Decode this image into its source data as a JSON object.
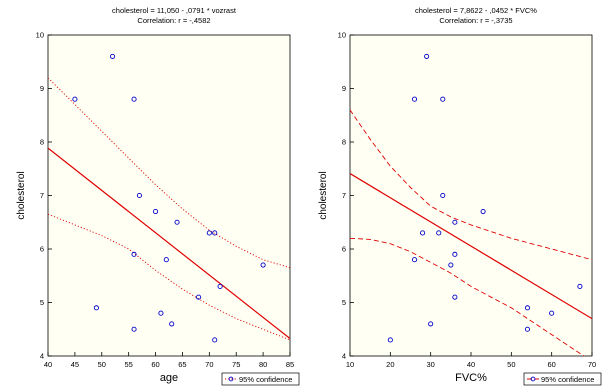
{
  "chart_data": [
    {
      "type": "scatter",
      "title": "cholesterol = 11,050 - ,0791 * vozrast",
      "subtitle": "Correlation: r = -,4582",
      "xlabel": "age",
      "ylabel": "cholesterol",
      "xlim": [
        40,
        85
      ],
      "ylim": [
        4,
        10
      ],
      "xticks": [
        "40",
        "45",
        "50",
        "55",
        "60",
        "65",
        "70",
        "75",
        "80",
        "85"
      ],
      "yticks": [
        "4",
        "5",
        "6",
        "7",
        "8",
        "9",
        "10"
      ],
      "legend": "95% confidence",
      "legend_position": "bottom-right",
      "fit_line": {
        "intercept": 11.05,
        "slope": -0.0791
      },
      "band_style": "dotted",
      "band_upper": {
        "x": [
          40,
          50,
          57,
          60,
          65,
          70,
          75,
          80,
          85
        ],
        "y": [
          9.2,
          8.2,
          7.5,
          7.2,
          6.75,
          6.35,
          6.05,
          5.8,
          5.65
        ]
      },
      "band_lower": {
        "x": [
          40,
          45,
          50,
          55,
          60,
          65,
          70,
          75,
          80,
          85
        ],
        "y": [
          6.65,
          6.45,
          6.25,
          6.0,
          5.6,
          5.25,
          4.95,
          4.7,
          4.5,
          4.3
        ]
      },
      "colors": {
        "points": "#0000cc",
        "line": "#e00000",
        "background": "#fffff4"
      },
      "points": {
        "x": [
          45,
          52,
          56,
          57,
          60,
          62,
          64,
          56,
          49,
          61,
          63,
          68,
          70,
          71,
          72,
          56,
          71,
          80
        ],
        "y": [
          8.8,
          9.6,
          8.8,
          7.0,
          6.7,
          5.8,
          6.5,
          5.9,
          4.9,
          4.8,
          4.6,
          5.1,
          6.3,
          6.3,
          5.3,
          4.5,
          4.3,
          5.7
        ]
      }
    },
    {
      "type": "scatter",
      "title": "cholesterol = 7,8622 - ,0452 * FVC%",
      "subtitle": "Correlation: r = -,3735",
      "xlabel": "FVC%",
      "ylabel": "cholesterol",
      "xlim": [
        10,
        70
      ],
      "ylim": [
        4,
        10
      ],
      "xticks": [
        "10",
        "20",
        "30",
        "40",
        "50",
        "60",
        "70"
      ],
      "yticks": [
        "4",
        "5",
        "6",
        "7",
        "8",
        "9",
        "10"
      ],
      "legend": "95% confidence",
      "legend_position": "bottom-right",
      "fit_line": {
        "intercept": 7.8622,
        "slope": -0.0452
      },
      "band_style": "dashed",
      "band_upper": {
        "x": [
          10,
          15,
          20,
          25,
          30,
          35,
          40,
          50,
          60,
          70
        ],
        "y": [
          8.6,
          8.05,
          7.55,
          7.15,
          6.8,
          6.6,
          6.45,
          6.2,
          6.0,
          5.8
        ]
      },
      "band_lower": {
        "x": [
          10,
          15,
          20,
          25,
          30,
          35,
          40,
          45,
          50,
          55,
          60,
          65,
          70
        ],
        "y": [
          6.2,
          6.18,
          6.1,
          5.95,
          5.75,
          5.55,
          5.3,
          5.1,
          4.9,
          4.65,
          4.4,
          4.15,
          3.9
        ]
      },
      "colors": {
        "points": "#0000cc",
        "line": "#e00000",
        "background": "#fffff4"
      },
      "points": {
        "x": [
          26,
          33,
          29,
          33,
          28,
          32,
          36,
          43,
          26,
          36,
          35,
          30,
          36,
          54,
          60,
          67,
          54,
          20
        ],
        "y": [
          8.8,
          8.8,
          9.6,
          7.0,
          6.3,
          6.3,
          6.5,
          6.7,
          5.8,
          5.9,
          5.7,
          4.6,
          5.1,
          4.9,
          4.8,
          5.3,
          4.5,
          4.3
        ]
      }
    }
  ]
}
